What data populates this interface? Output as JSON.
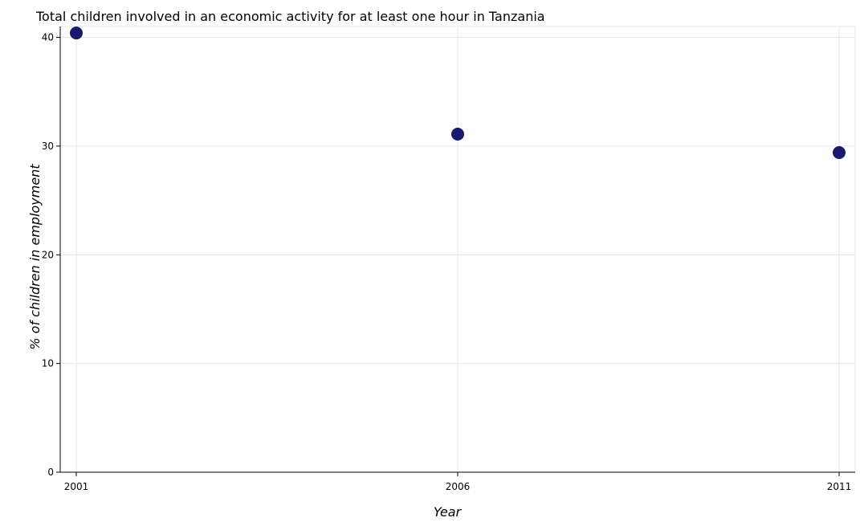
{
  "chart_data": {
    "type": "scatter",
    "title": "Total children involved in an economic activity for at least one hour in Tanzania",
    "xlabel": "Year",
    "ylabel": "% of children in employment",
    "categories": [
      "2001",
      "2006",
      "2011"
    ],
    "series": [
      {
        "values": [
          40.4,
          31.1,
          29.4
        ],
        "color": "#191970"
      }
    ],
    "ylim": [
      0,
      41
    ],
    "yticks": [
      0,
      10,
      20,
      30,
      40
    ],
    "grid": true,
    "legend": "none"
  }
}
